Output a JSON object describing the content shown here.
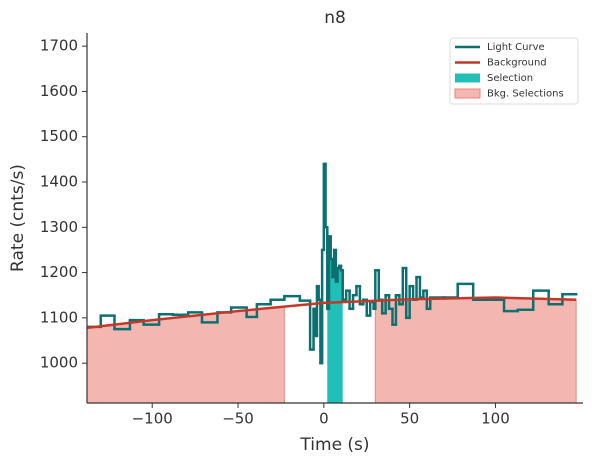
{
  "chart_data": {
    "type": "step",
    "title": "n8",
    "x_label": "Time (s)",
    "y_label": "Rate (cnts/s)",
    "xlim": [
      -138,
      151
    ],
    "ylim": [
      912,
      1729
    ],
    "xticks": [
      {
        "value": -100,
        "label": "−100"
      },
      {
        "value": -50,
        "label": "−50"
      },
      0,
      50,
      100
    ],
    "yticks": [
      1000,
      1100,
      1200,
      1300,
      1400,
      1500,
      1600,
      1700
    ],
    "legend": "upper right",
    "series": [
      {
        "name": "Light Curve",
        "color": "#0d7070",
        "bins": [
          -138,
          -130,
          -122,
          -113,
          -105,
          -96,
          -88,
          -79,
          -71,
          -62,
          -54,
          -45,
          -39,
          -31,
          -23,
          -14,
          -8,
          -6,
          -5,
          -4,
          -3,
          -2,
          -1,
          0,
          1,
          2,
          3,
          4,
          5,
          6,
          7,
          8,
          9,
          10,
          11,
          13,
          15,
          17,
          19,
          21,
          23,
          25,
          27,
          29,
          30,
          32,
          34,
          36,
          38,
          40,
          42,
          44,
          46,
          48,
          50,
          52,
          54,
          56,
          58,
          60,
          62,
          70,
          78,
          87,
          96,
          105,
          113,
          122,
          131,
          139,
          147
        ],
        "values": [
          1080,
          1105,
          1075,
          1095,
          1085,
          1108,
          1107,
          1112,
          1090,
          1112,
          1123,
          1102,
          1130,
          1140,
          1148,
          1138,
          1030,
          1120,
          1060,
          1170,
          1140,
          1000,
          1250,
          1440,
          1300,
          1120,
          1280,
          1230,
          1190,
          1250,
          1180,
          1210,
          1215,
          1205,
          1140,
          1160,
          1120,
          1150,
          1170,
          1130,
          1140,
          1105,
          1135,
          1120,
          1205,
          1140,
          1110,
          1150,
          1120,
          1085,
          1150,
          1130,
          1210,
          1100,
          1170,
          1140,
          1190,
          1145,
          1160,
          1120,
          1145,
          1145,
          1175,
          1140,
          1140,
          1115,
          1118,
          1160,
          1130,
          1152
        ]
      },
      {
        "name": "Background",
        "color": "#c0392b",
        "x": [
          -138,
          -100,
          -50,
          0,
          50,
          100,
          147
        ],
        "values": [
          1078,
          1095,
          1115,
          1133,
          1141,
          1145,
          1140
        ]
      }
    ],
    "selections": [
      {
        "name": "Selection",
        "color": "#20c0b8",
        "ranges": [
          [
            2,
            11
          ]
        ]
      },
      {
        "name": "Bkg. Selections",
        "color": "#f4b6b0",
        "ranges": [
          [
            -138,
            -23
          ],
          [
            30,
            147
          ]
        ]
      }
    ]
  }
}
